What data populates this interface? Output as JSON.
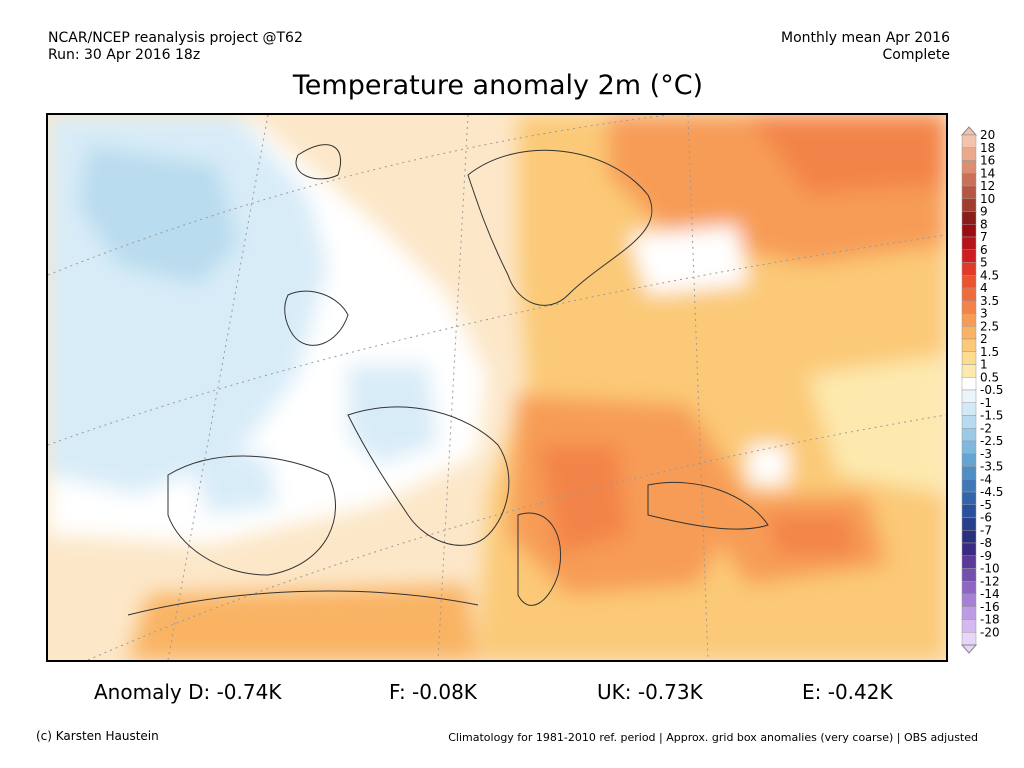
{
  "header": {
    "left_line1": "NCAR/NCEP reanalysis project @T62",
    "left_line2": "Run: 30 Apr 2016 18z",
    "right_line1": "Monthly mean Apr 2016",
    "right_line2": "Complete"
  },
  "title": "Temperature anomaly 2m (°C)",
  "legend": {
    "labels": [
      "20",
      "18",
      "16",
      "14",
      "12",
      "10",
      "9",
      "8",
      "7",
      "6",
      "5",
      "4.5",
      "4",
      "3.5",
      "3",
      "2.5",
      "2",
      "1.5",
      "1",
      "0.5",
      "-0.5",
      "-1",
      "-1.5",
      "-2",
      "-2.5",
      "-3",
      "-3.5",
      "-4",
      "-4.5",
      "-5",
      "-6",
      "-7",
      "-8",
      "-9",
      "-10",
      "-12",
      "-14",
      "-16",
      "-18",
      "-20"
    ],
    "colors": [
      "#f2c4ad",
      "#eaa98d",
      "#dc8d72",
      "#c97059",
      "#b75643",
      "#a13d2f",
      "#8a1c1a",
      "#9b0d12",
      "#b5141b",
      "#cf1e22",
      "#e13a29",
      "#ea5433",
      "#ef6c3d",
      "#f38449",
      "#f79c56",
      "#f9b364",
      "#fbc977",
      "#fddb8f",
      "#fde9ae",
      "#ffffff",
      "#eaf4fb",
      "#d3eaf6",
      "#b8dcef",
      "#9ccae6",
      "#80b7dc",
      "#65a3d2",
      "#4f8dc5",
      "#3f77b7",
      "#3464aa",
      "#2b509b",
      "#27408b",
      "#2a2f7e",
      "#3b2a82",
      "#5a3a98",
      "#7450ad",
      "#8c66c2",
      "#a580d4",
      "#bd9ce3",
      "#d3b9ef",
      "#e6d6f8"
    ]
  },
  "stats": {
    "d": "Anomaly D: -0.74K",
    "f": "F: -0.08K",
    "uk": "UK: -0.73K",
    "e": "E: -0.42K"
  },
  "footer": {
    "credit": "(c) Karsten Haustein",
    "note": "Climatology for 1981-2010 ref. period | Approx. grid box anomalies (very coarse) | OBS adjusted"
  }
}
